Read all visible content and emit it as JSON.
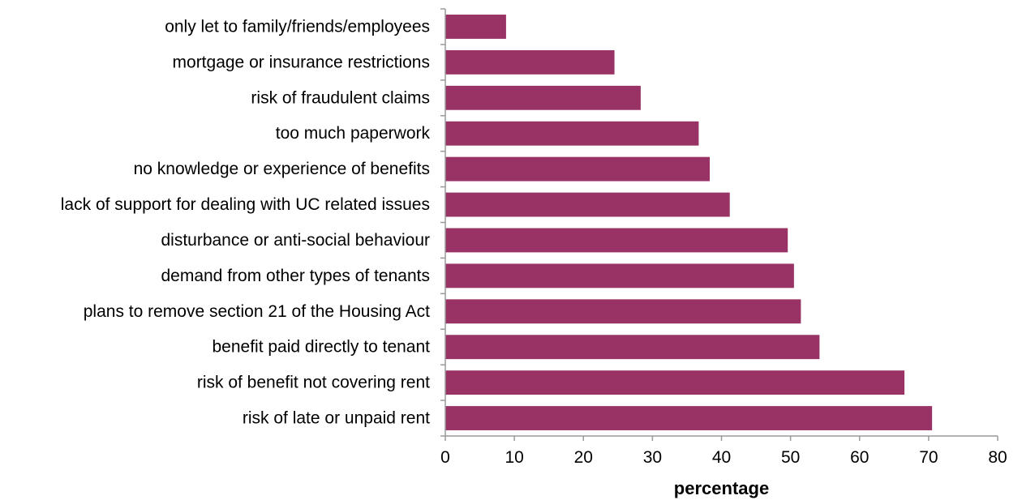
{
  "chart_data": {
    "type": "bar",
    "orientation": "horizontal",
    "categories": [
      "only let to family/friends/employees",
      "mortgage or insurance restrictions",
      "risk of fraudulent claims",
      "too much paperwork",
      "no knowledge or experience of benefits",
      "lack of support for dealing with UC related issues",
      "disturbance or anti-social behaviour",
      "demand from other types of tenants",
      "plans to remove section 21 of the Housing Act",
      "benefit paid directly to tenant",
      "risk of benefit not covering rent",
      "risk of late or unpaid rent"
    ],
    "values": [
      8.8,
      24.5,
      28.3,
      36.7,
      38.3,
      41.2,
      49.6,
      50.5,
      51.5,
      54.2,
      66.5,
      70.5
    ],
    "title": "",
    "xlabel": "percentage",
    "ylabel": "",
    "xlim": [
      0,
      80
    ],
    "xticks": [
      "0",
      "10",
      "20",
      "30",
      "40",
      "50",
      "60",
      "70",
      "80"
    ],
    "grid": false,
    "legend": "none",
    "bar_color": "#993366"
  }
}
